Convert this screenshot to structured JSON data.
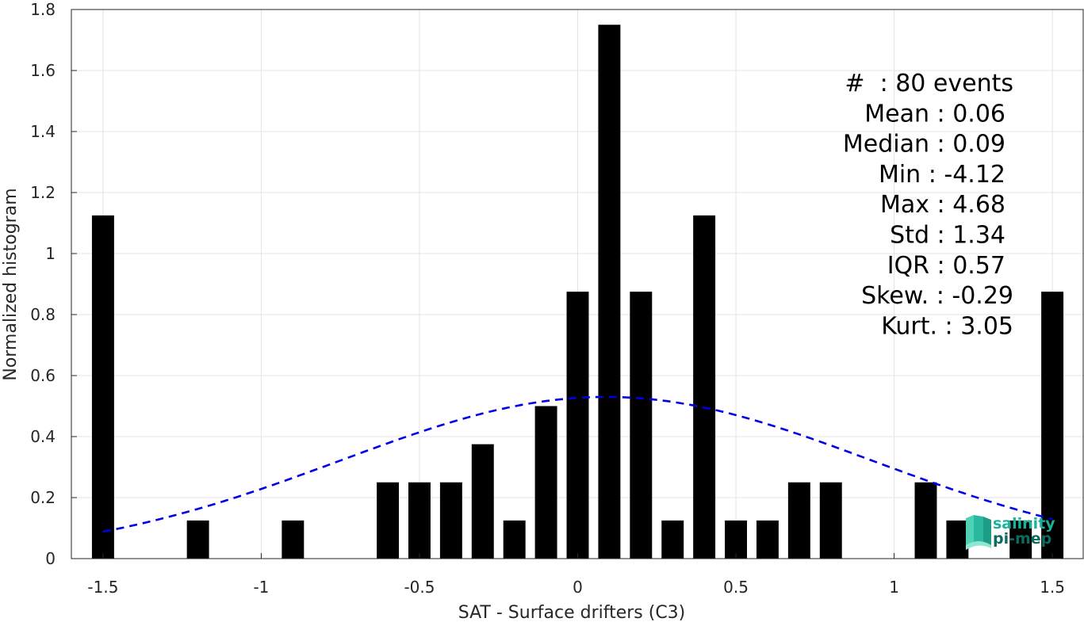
{
  "chart_data": {
    "type": "bar",
    "xlabel": "SAT - Surface drifters (C3)",
    "ylabel": "Normalized histogram",
    "xlim": [
      -1.6,
      1.6
    ],
    "ylim": [
      0,
      1.8
    ],
    "grid": true,
    "xticks": [
      -1.5,
      -1,
      -0.5,
      0,
      0.5,
      1,
      1.5
    ],
    "xtick_labels": [
      "-1.5",
      "-1",
      "-0.5",
      "0",
      "0.5",
      "1",
      "1.5"
    ],
    "yticks": [
      0,
      0.2,
      0.4,
      0.6,
      0.8,
      1,
      1.2,
      1.4,
      1.6,
      1.8
    ],
    "ytick_labels": [
      "0",
      "0.2",
      "0.4",
      "0.6",
      "0.8",
      "1",
      "1.2",
      "1.4",
      "1.6",
      "1.8"
    ],
    "bars": [
      {
        "x": -1.5,
        "y": 1.125
      },
      {
        "x": -1.2,
        "y": 0.125
      },
      {
        "x": -0.9,
        "y": 0.125
      },
      {
        "x": -0.6,
        "y": 0.25
      },
      {
        "x": -0.5,
        "y": 0.25
      },
      {
        "x": -0.4,
        "y": 0.25
      },
      {
        "x": -0.3,
        "y": 0.375
      },
      {
        "x": -0.2,
        "y": 0.125
      },
      {
        "x": -0.1,
        "y": 0.5
      },
      {
        "x": 0.0,
        "y": 0.875
      },
      {
        "x": 0.1,
        "y": 1.75
      },
      {
        "x": 0.2,
        "y": 0.875
      },
      {
        "x": 0.3,
        "y": 0.125
      },
      {
        "x": 0.4,
        "y": 1.125
      },
      {
        "x": 0.5,
        "y": 0.125
      },
      {
        "x": 0.6,
        "y": 0.125
      },
      {
        "x": 0.7,
        "y": 0.25
      },
      {
        "x": 0.8,
        "y": 0.25
      },
      {
        "x": 1.1,
        "y": 0.25
      },
      {
        "x": 1.2,
        "y": 0.125
      },
      {
        "x": 1.4,
        "y": 0.125
      },
      {
        "x": 1.5,
        "y": 0.875
      }
    ],
    "bar_width": 0.07,
    "bar_color": "#000000",
    "fit_curve": {
      "type": "normal",
      "mean": 0.09,
      "amplitude": 0.53,
      "sigma": 0.84,
      "x_range": [
        -1.5,
        1.5
      ],
      "color": "#0000e6",
      "style": "dashed"
    },
    "annotations": [
      "#  : 80 events",
      "Mean : 0.06",
      "Median : 0.09",
      "Min : -4.12",
      "Max : 4.68",
      "Std : 1.34",
      "IQR : 0.57",
      "Skew. : -0.29",
      "Kurt. : 3.05"
    ]
  },
  "logo": {
    "line1": "salinity",
    "line2": "pi-mep",
    "color1": "#1ab39a",
    "color2": "#0d6b5e"
  }
}
